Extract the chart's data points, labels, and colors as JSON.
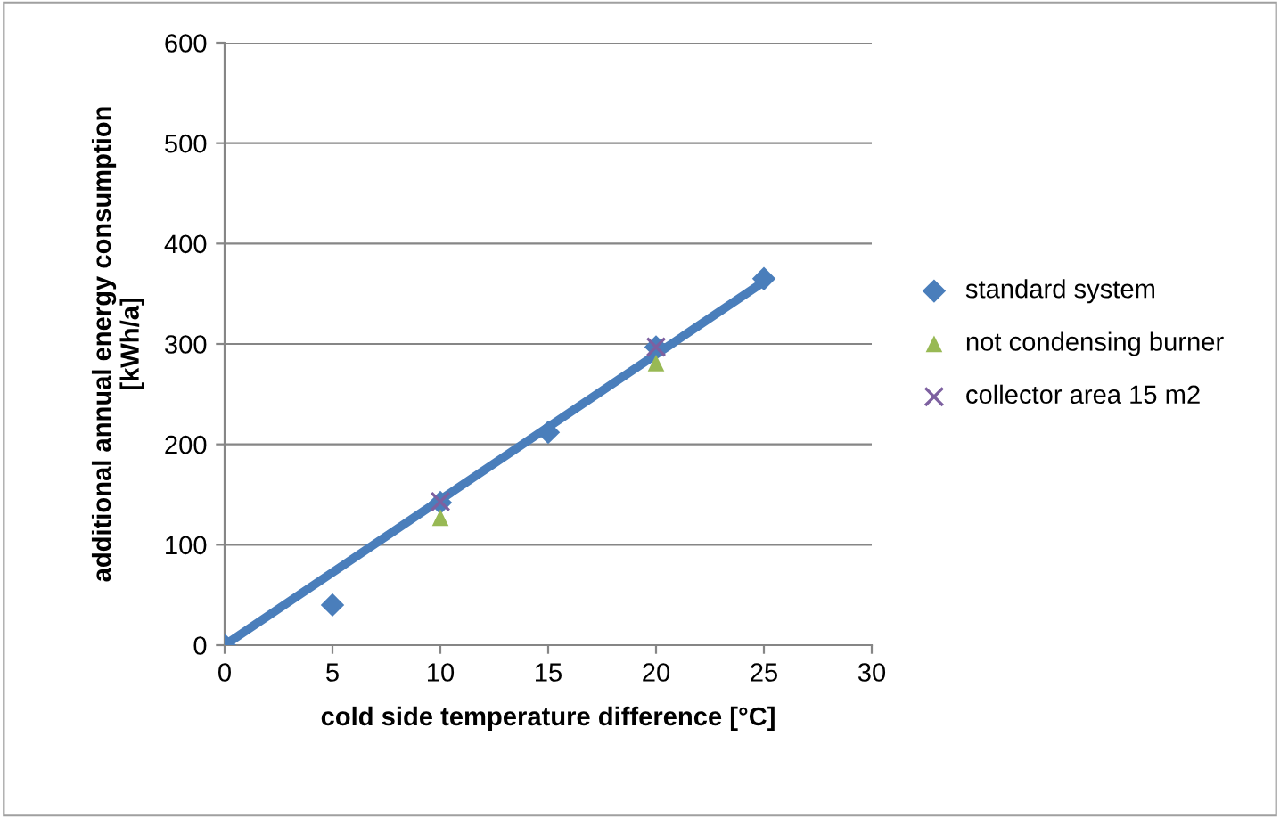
{
  "chart_data": {
    "type": "scatter",
    "xlabel": "cold side temperature difference [°C]",
    "ylabel": "additional annual energy consumption\n[kWh/a]",
    "xlim": [
      0,
      30
    ],
    "xticks": [
      0,
      5,
      10,
      15,
      20,
      25,
      30
    ],
    "ylim": [
      0,
      600
    ],
    "yticks": [
      0,
      100,
      200,
      300,
      400,
      500,
      600
    ],
    "grid": "y",
    "legend": "right",
    "series": [
      {
        "name": "standard system",
        "color": "#4a7ebb",
        "marker": "diamond",
        "x": [
          0,
          5,
          10,
          15,
          20,
          25
        ],
        "values": [
          0,
          40,
          142,
          212,
          297,
          365
        ]
      },
      {
        "name": "not condensing burner",
        "color": "#98b954",
        "marker": "triangle",
        "x": [
          10,
          20
        ],
        "values": [
          127,
          281
        ]
      },
      {
        "name": "collector area 15 m2",
        "color": "#7d60a0",
        "marker": "cross",
        "x": [
          10,
          20
        ],
        "values": [
          143,
          297
        ]
      },
      {
        "type": "line",
        "color": "#4a7ebb",
        "marker": "none",
        "x": [
          0,
          25
        ],
        "values": [
          0,
          362
        ]
      }
    ]
  }
}
